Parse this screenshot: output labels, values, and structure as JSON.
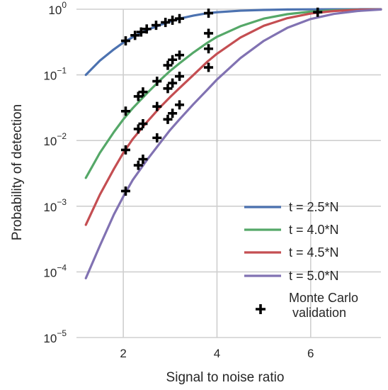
{
  "chart_data": {
    "type": "line",
    "xlabel": "Signal to noise ratio",
    "ylabel": "Probability of detection",
    "xlim": [
      1.0,
      7.5
    ],
    "ylim_log10": [
      -5,
      0
    ],
    "yscale": "log",
    "grid": true,
    "x_ticks": [
      {
        "value": 2,
        "label": "2"
      },
      {
        "value": 4,
        "label": "4"
      },
      {
        "value": 6,
        "label": "6"
      }
    ],
    "y_ticks": [
      {
        "exp": 0,
        "base": "10",
        "sup": "0"
      },
      {
        "exp": -1,
        "base": "10",
        "sup": "−1"
      },
      {
        "exp": -2,
        "base": "10",
        "sup": "−2"
      },
      {
        "exp": -3,
        "base": "10",
        "sup": "−3"
      },
      {
        "exp": -4,
        "base": "10",
        "sup": "−4"
      },
      {
        "exp": -5,
        "base": "10",
        "sup": "−5"
      }
    ],
    "legend_position": "lower-right",
    "series": [
      {
        "name": "t = 2.5*N",
        "color": "#4c72b0",
        "x": [
          1.2,
          1.5,
          1.8,
          2.0,
          2.2,
          2.5,
          2.8,
          3.0,
          3.2,
          3.5,
          3.8,
          4.0,
          4.5,
          5.0,
          5.5,
          6.0,
          6.5,
          7.0,
          7.5
        ],
        "y": [
          0.1,
          0.165,
          0.245,
          0.31,
          0.375,
          0.48,
          0.58,
          0.65,
          0.72,
          0.8,
          0.87,
          0.9,
          0.95,
          0.975,
          0.99,
          0.995,
          0.998,
          0.999,
          1.0
        ]
      },
      {
        "name": "t = 4.0*N",
        "color": "#55a868",
        "x": [
          1.2,
          1.5,
          1.8,
          2.0,
          2.2,
          2.5,
          2.8,
          3.0,
          3.2,
          3.5,
          3.8,
          4.0,
          4.5,
          5.0,
          5.5,
          6.0,
          6.5,
          7.0,
          7.5
        ],
        "y": [
          0.0027,
          0.0065,
          0.0135,
          0.021,
          0.031,
          0.052,
          0.085,
          0.115,
          0.15,
          0.22,
          0.31,
          0.38,
          0.55,
          0.72,
          0.84,
          0.92,
          0.96,
          0.985,
          0.995
        ]
      },
      {
        "name": "t = 4.5*N",
        "color": "#c44e52",
        "x": [
          1.2,
          1.5,
          1.8,
          2.0,
          2.2,
          2.5,
          2.8,
          3.0,
          3.2,
          3.5,
          3.8,
          4.0,
          4.5,
          5.0,
          5.5,
          6.0,
          6.5,
          7.0,
          7.5
        ],
        "y": [
          0.00052,
          0.0015,
          0.0037,
          0.0065,
          0.0105,
          0.019,
          0.033,
          0.046,
          0.063,
          0.1,
          0.16,
          0.21,
          0.37,
          0.56,
          0.73,
          0.86,
          0.94,
          0.98,
          0.995
        ]
      },
      {
        "name": "t = 5.0*N",
        "color": "#8172b2",
        "x": [
          1.2,
          1.5,
          1.8,
          2.0,
          2.2,
          2.5,
          2.8,
          3.0,
          3.2,
          3.5,
          3.8,
          4.0,
          4.5,
          5.0,
          5.5,
          6.0,
          6.5,
          7.0,
          7.5
        ],
        "y": [
          8e-05,
          0.00025,
          0.00075,
          0.0014,
          0.0025,
          0.005,
          0.0095,
          0.0145,
          0.021,
          0.036,
          0.06,
          0.085,
          0.18,
          0.33,
          0.52,
          0.71,
          0.85,
          0.94,
          0.99
        ]
      },
      {
        "name": "Monte Carlo\n validation",
        "color": "#000000",
        "marker": "+",
        "points": [
          {
            "x": 2.05,
            "y": 0.33
          },
          {
            "x": 2.25,
            "y": 0.4
          },
          {
            "x": 2.38,
            "y": 0.45
          },
          {
            "x": 2.5,
            "y": 0.5
          },
          {
            "x": 2.7,
            "y": 0.57
          },
          {
            "x": 2.9,
            "y": 0.63
          },
          {
            "x": 3.05,
            "y": 0.68
          },
          {
            "x": 3.2,
            "y": 0.72
          },
          {
            "x": 3.82,
            "y": 0.87
          },
          {
            "x": 2.05,
            "y": 0.028
          },
          {
            "x": 2.32,
            "y": 0.047
          },
          {
            "x": 2.42,
            "y": 0.055
          },
          {
            "x": 2.72,
            "y": 0.08
          },
          {
            "x": 2.95,
            "y": 0.14
          },
          {
            "x": 3.05,
            "y": 0.17
          },
          {
            "x": 3.2,
            "y": 0.2
          },
          {
            "x": 3.82,
            "y": 0.43
          },
          {
            "x": 2.05,
            "y": 0.0072
          },
          {
            "x": 2.32,
            "y": 0.015
          },
          {
            "x": 2.42,
            "y": 0.018
          },
          {
            "x": 2.72,
            "y": 0.033
          },
          {
            "x": 2.95,
            "y": 0.062
          },
          {
            "x": 3.05,
            "y": 0.075
          },
          {
            "x": 3.2,
            "y": 0.095
          },
          {
            "x": 3.82,
            "y": 0.25
          },
          {
            "x": 2.05,
            "y": 0.0017
          },
          {
            "x": 2.32,
            "y": 0.0042
          },
          {
            "x": 2.42,
            "y": 0.0052
          },
          {
            "x": 2.72,
            "y": 0.011
          },
          {
            "x": 2.95,
            "y": 0.021
          },
          {
            "x": 3.05,
            "y": 0.026
          },
          {
            "x": 3.2,
            "y": 0.035
          },
          {
            "x": 3.82,
            "y": 0.13
          },
          {
            "x": 6.15,
            "y": 0.9
          }
        ]
      }
    ]
  }
}
